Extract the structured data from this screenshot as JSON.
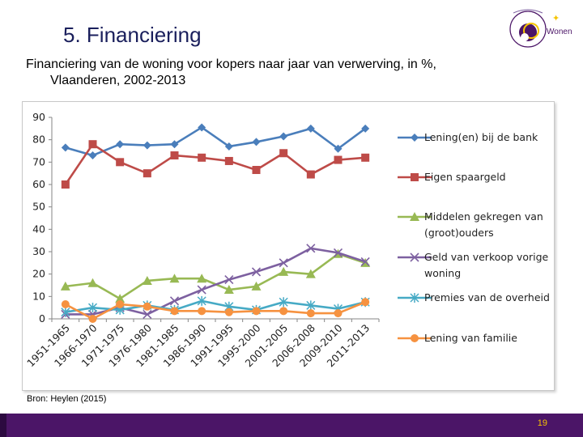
{
  "slide": {
    "title": "5. Financiering",
    "subtitle_line1": "Financiering van de woning voor kopers naar jaar van verwerving, in %,",
    "subtitle_line2": "Vlaanderen, 2002-2013",
    "source": "Bron: Heylen (2015)",
    "page_number": "19",
    "logo_text": "Wonen"
  },
  "colors": {
    "footer": "#4b1567",
    "title": "#1a1f5c"
  },
  "chart_data": {
    "type": "line",
    "title": "",
    "xlabel": "",
    "ylabel": "",
    "ylim": [
      0,
      90
    ],
    "yticks": [
      0,
      10,
      20,
      30,
      40,
      50,
      60,
      70,
      80,
      90
    ],
    "categories": [
      "1951-1965",
      "1966-1970",
      "1971-1975",
      "1976-1980",
      "1981-1985",
      "1986-1990",
      "1991-1995",
      "1995-2000",
      "2001-2005",
      "2006-2008",
      "2009-2010",
      "2011-2013"
    ],
    "legend_position": "right",
    "series": [
      {
        "name": "Lening(en) bij de bank",
        "color": "#4a7ebb",
        "marker": "diamond",
        "values": [
          76.5,
          73,
          78,
          77.5,
          78,
          85.5,
          77,
          79,
          81.5,
          85,
          76,
          85
        ]
      },
      {
        "name": "Eigen spaargeld",
        "color": "#be4b48",
        "marker": "square",
        "values": [
          60,
          78,
          70,
          65,
          73,
          72,
          70.5,
          66.5,
          74,
          64.5,
          71,
          72
        ]
      },
      {
        "name": "Middelen gekregen van (groot)ouders",
        "color": "#98b954",
        "marker": "triangle",
        "values": [
          14.5,
          16,
          9,
          17,
          18,
          18,
          13,
          14.5,
          21,
          20,
          29,
          25
        ]
      },
      {
        "name": "Geld van verkoop vorige woning",
        "color": "#7d60a0",
        "marker": "x",
        "values": [
          2,
          2,
          5,
          2,
          8,
          13,
          17.5,
          21,
          25,
          31.5,
          29.5,
          25.5
        ]
      },
      {
        "name": "Premies van de overheid",
        "color": "#46aac5",
        "marker": "star",
        "values": [
          3,
          5,
          4,
          6,
          4,
          8,
          5.5,
          4,
          7.5,
          6,
          4.5,
          7.5
        ]
      },
      {
        "name": "Lening van familie",
        "color": "#f69240",
        "marker": "circle",
        "values": [
          6.5,
          0,
          6.5,
          5.5,
          3.5,
          3.5,
          3,
          3.5,
          3.5,
          2.5,
          2.5,
          7.5
        ]
      }
    ]
  }
}
